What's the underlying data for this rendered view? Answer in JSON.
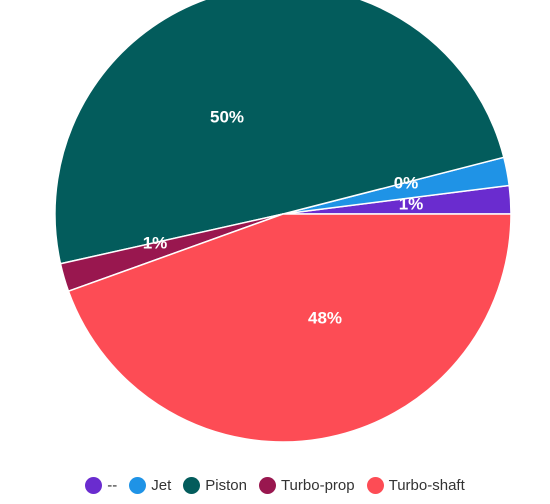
{
  "chart_data": {
    "type": "pie",
    "title": "",
    "slices": [
      {
        "label": "--",
        "value": 1,
        "display": "1%",
        "color": "#6a2ccf"
      },
      {
        "label": "Jet",
        "value": 0,
        "display": "0%",
        "color": "#1f93e6"
      },
      {
        "label": "Piston",
        "value": 50,
        "display": "50%",
        "color": "#035c5c"
      },
      {
        "label": "Turbo-prop",
        "value": 1,
        "display": "1%",
        "color": "#99174f"
      },
      {
        "label": "Turbo-shaft",
        "value": 48,
        "display": "48%",
        "color": "#fd4c55"
      }
    ],
    "legend_position": "bottom"
  }
}
